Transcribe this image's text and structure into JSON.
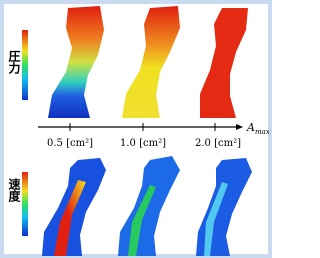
{
  "row_labels": {
    "pressure": "圧力",
    "velocity": "速度"
  },
  "axis": {
    "symbol": "A",
    "subscript": "max"
  },
  "columns": [
    {
      "label": "0.5 [cm²]"
    },
    {
      "label": "1.0 [cm²]"
    },
    {
      "label": "2.0 [cm²]"
    }
  ]
}
